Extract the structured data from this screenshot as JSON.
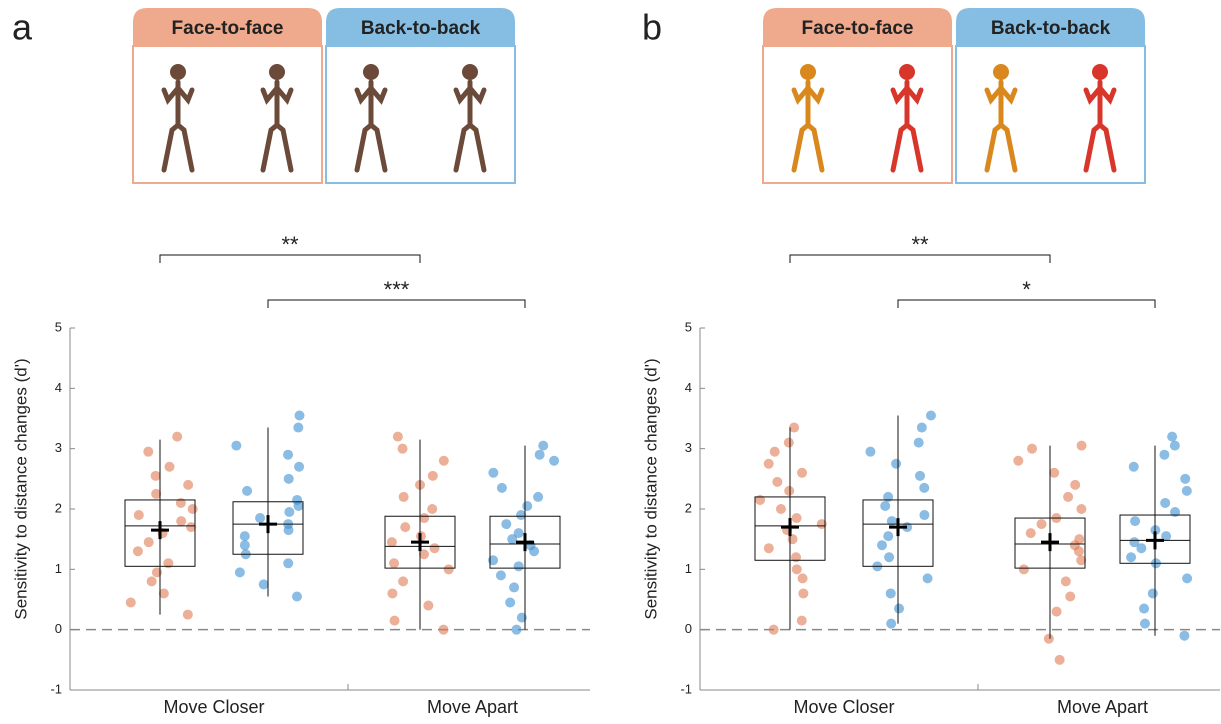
{
  "chart_data": [
    {
      "type": "box",
      "panel_label": "a",
      "ylabel": "Sensitivity to distance changes (d')",
      "categories": [
        "Move Closer",
        "Move Apart"
      ],
      "ylim": [
        -1,
        5
      ],
      "yticks": [
        -1,
        0,
        1,
        2,
        3,
        4,
        5
      ],
      "reference_line": 0,
      "annotations": [
        {
          "label": "**"
        },
        {
          "label": "***"
        }
      ],
      "series": [
        {
          "name": "Face-to-face",
          "color": "#e07a53",
          "header_color": "#efa98d",
          "boxes": [
            {
              "min": 0.25,
              "q1": 1.05,
              "median": 1.72,
              "q3": 2.15,
              "max": 3.15,
              "mean": 1.65
            },
            {
              "min": 0,
              "q1": 1.02,
              "median": 1.38,
              "q3": 1.88,
              "max": 3.15,
              "mean": 1.45
            }
          ],
          "points": [
            [
              0.25,
              0.45,
              0.6,
              0.8,
              0.95,
              1.1,
              1.3,
              1.45,
              1.6,
              1.7,
              1.8,
              1.9,
              2.0,
              2.1,
              2.25,
              2.4,
              2.55,
              2.7,
              2.95,
              3.2
            ],
            [
              0,
              0.15,
              0.4,
              0.6,
              0.8,
              1.0,
              1.1,
              1.25,
              1.35,
              1.45,
              1.55,
              1.7,
              1.85,
              2.0,
              2.2,
              2.4,
              2.55,
              2.8,
              3.0,
              3.2
            ]
          ]
        },
        {
          "name": "Back-to-back",
          "color": "#3d8fd1",
          "header_color": "#85bde3",
          "boxes": [
            {
              "min": 0.55,
              "q1": 1.25,
              "median": 1.75,
              "q3": 2.12,
              "max": 3.35,
              "mean": 1.75
            },
            {
              "min": 0,
              "q1": 1.02,
              "median": 1.42,
              "q3": 1.88,
              "max": 3.05,
              "mean": 1.45
            }
          ],
          "points": [
            [
              0.55,
              0.75,
              0.95,
              1.1,
              1.25,
              1.4,
              1.55,
              1.65,
              1.75,
              1.85,
              1.95,
              2.05,
              2.15,
              2.3,
              2.5,
              2.7,
              2.9,
              3.05,
              3.35,
              3.55
            ],
            [
              0,
              0.2,
              0.45,
              0.7,
              0.9,
              1.05,
              1.15,
              1.3,
              1.4,
              1.5,
              1.6,
              1.75,
              1.9,
              2.05,
              2.2,
              2.35,
              2.6,
              2.8,
              3.05,
              2.9
            ]
          ]
        }
      ]
    },
    {
      "type": "box",
      "panel_label": "b",
      "ylabel": "Sensitivity to distance changes (d')",
      "categories": [
        "Move Closer",
        "Move Apart"
      ],
      "ylim": [
        -1,
        5
      ],
      "yticks": [
        -1,
        0,
        1,
        2,
        3,
        4,
        5
      ],
      "reference_line": 0,
      "annotations": [
        {
          "label": "**"
        },
        {
          "label": "*"
        }
      ],
      "series": [
        {
          "name": "Face-to-face",
          "color": "#e07a53",
          "header_color": "#efa98d",
          "boxes": [
            {
              "min": 0,
              "q1": 1.15,
              "median": 1.72,
              "q3": 2.2,
              "max": 3.35,
              "mean": 1.7
            },
            {
              "min": -0.15,
              "q1": 1.02,
              "median": 1.42,
              "q3": 1.85,
              "max": 3.05,
              "mean": 1.45
            }
          ],
          "points": [
            [
              0,
              0.15,
              0.6,
              0.85,
              1.0,
              1.2,
              1.35,
              1.5,
              1.65,
              1.75,
              1.85,
              2.0,
              2.15,
              2.3,
              2.45,
              2.6,
              2.75,
              2.95,
              3.1,
              3.35
            ],
            [
              -0.5,
              -0.15,
              0.3,
              0.55,
              0.8,
              1.0,
              1.15,
              1.3,
              1.4,
              1.5,
              1.6,
              1.75,
              1.85,
              2.0,
              2.2,
              2.4,
              2.6,
              2.8,
              3.0,
              3.05
            ]
          ]
        },
        {
          "name": "Back-to-back",
          "color": "#3d8fd1",
          "header_color": "#85bde3",
          "boxes": [
            {
              "min": 0.1,
              "q1": 1.05,
              "median": 1.75,
              "q3": 2.15,
              "max": 3.55,
              "mean": 1.7
            },
            {
              "min": -0.1,
              "q1": 1.1,
              "median": 1.48,
              "q3": 1.9,
              "max": 3.05,
              "mean": 1.48
            }
          ],
          "points": [
            [
              0.1,
              0.35,
              0.6,
              0.85,
              1.05,
              1.2,
              1.4,
              1.55,
              1.7,
              1.8,
              1.9,
              2.05,
              2.2,
              2.35,
              2.55,
              2.75,
              2.95,
              3.1,
              3.35,
              3.55
            ],
            [
              -0.1,
              0.1,
              0.35,
              0.6,
              0.85,
              1.1,
              1.2,
              1.35,
              1.45,
              1.55,
              1.65,
              1.8,
              1.95,
              2.1,
              2.3,
              2.5,
              2.7,
              2.9,
              3.05,
              3.2
            ]
          ]
        }
      ]
    }
  ]
}
